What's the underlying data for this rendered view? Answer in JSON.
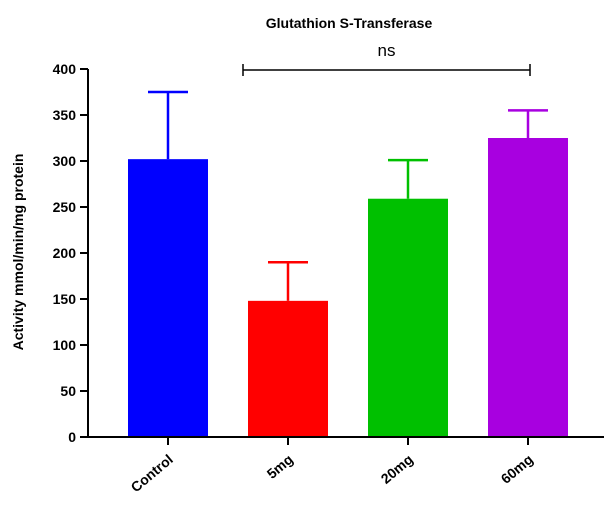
{
  "chart_data": {
    "type": "bar",
    "title": "Glutathion S-Transferase",
    "ylabel": "Activity mmol/min/mg protein",
    "xlabel": "",
    "categories": [
      "Control",
      "5mg",
      "20mg",
      "60mg"
    ],
    "values": [
      302,
      148,
      259,
      325
    ],
    "errors": [
      73,
      42,
      42,
      30
    ],
    "colors": [
      "#0000FF",
      "#FF0000",
      "#00C000",
      "#A800E0"
    ],
    "ylim": [
      0,
      400
    ],
    "yticks": [
      0,
      50,
      100,
      150,
      200,
      250,
      300,
      350,
      400
    ],
    "grid": false,
    "legend": "none",
    "significance": {
      "label": "ns",
      "from": "5mg",
      "to": "60mg"
    }
  }
}
